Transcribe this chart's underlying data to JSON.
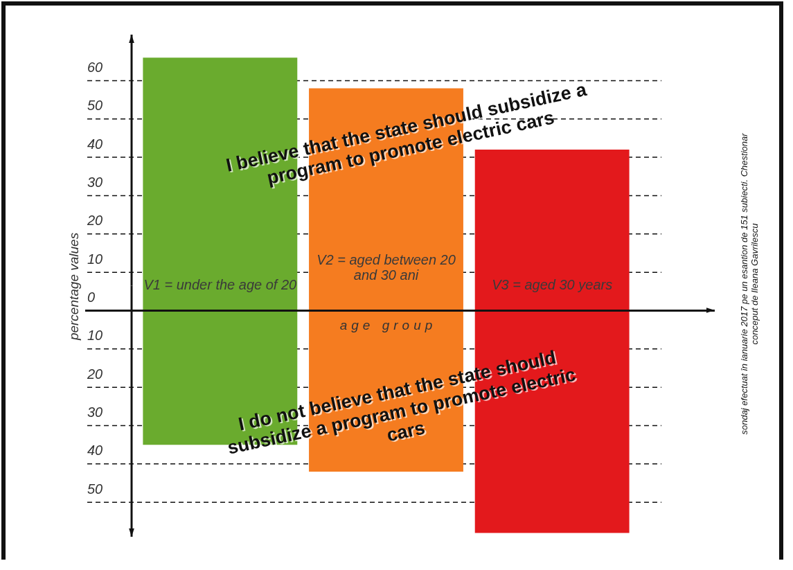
{
  "chart_data": {
    "type": "bar",
    "stacked": true,
    "categories": [
      "V1 = under the age of 20",
      "V2 = aged between 20 and 30 ani",
      "V3 = aged 30 years"
    ],
    "series": [
      {
        "colors": [
          "#6aab2e",
          "#f57c20",
          "#e3191c"
        ],
        "values": [
          66,
          58,
          42
        ]
      },
      {
        "colors": [
          "#6aab2e",
          "#f57c20",
          "#e3191c"
        ],
        "values": [
          -35,
          -42,
          -58
        ]
      }
    ],
    "xlabel": "age group",
    "ylabel": "percentage values",
    "ylim": [
      -59,
      72
    ],
    "yticks": [
      {
        "value": -50,
        "label": "50"
      },
      {
        "value": -40,
        "label": "40"
      },
      {
        "value": -30,
        "label": "30"
      },
      {
        "value": -20,
        "label": "20"
      },
      {
        "value": -10,
        "label": "10"
      },
      0,
      10,
      20,
      30,
      40,
      50,
      60
    ],
    "grid": "y",
    "legend": false,
    "annotations": [
      "I believe that the state should subsidize a program to promote electric cars",
      "I do not believe that the state should subsidize a program to promote electric cars",
      "sondaj efectuat în ianuarie 2017 pe un esantion de 151 subiecti. Chestionar conceput de Ileana Gavrilescu"
    ]
  }
}
